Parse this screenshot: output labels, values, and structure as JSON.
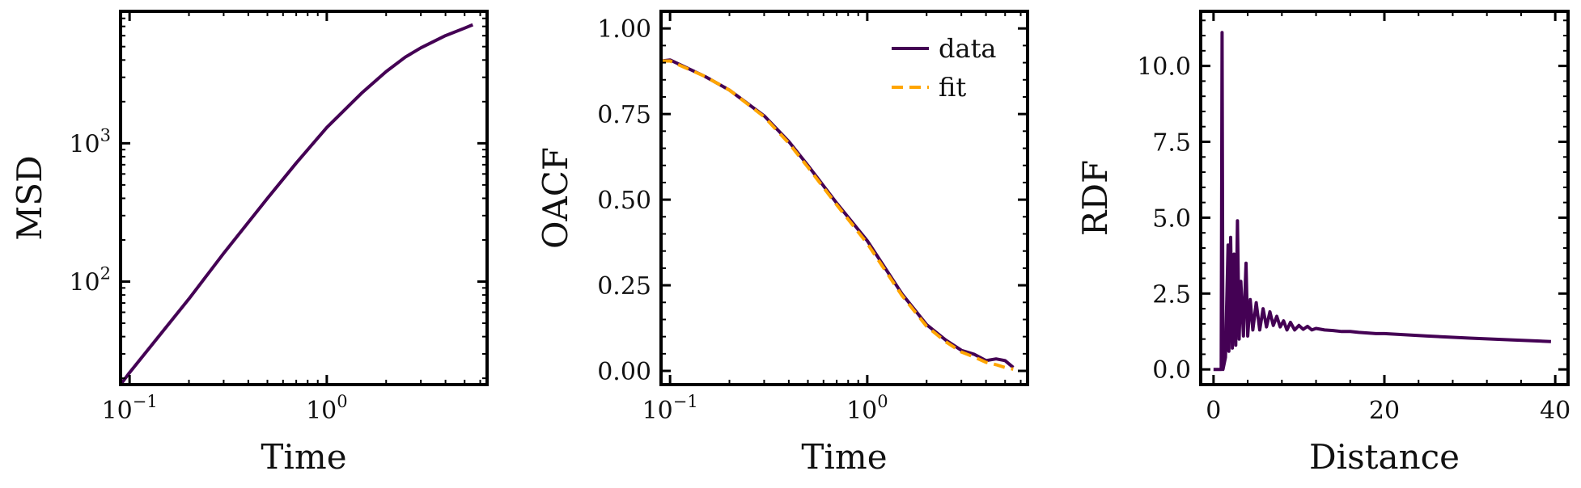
{
  "chart_data": [
    {
      "type": "line",
      "xlabel": "Time",
      "ylabel": "MSD",
      "xscale": "log",
      "yscale": "log",
      "xlim": [
        0.09,
        6.5
      ],
      "ylim": [
        18,
        9000
      ],
      "xticks": [
        {
          "value": 0.1,
          "base": "10",
          "exp": "−1"
        },
        {
          "value": 1,
          "base": "10",
          "exp": "0"
        }
      ],
      "yticks": [
        {
          "value": 100,
          "base": "10",
          "exp": "2"
        },
        {
          "value": 1000,
          "base": "10",
          "exp": "3"
        }
      ],
      "series": [
        {
          "color": "#440154",
          "dash": "solid",
          "x": [
            0.09,
            0.1,
            0.2,
            0.3,
            0.5,
            0.7,
            1.0,
            1.5,
            2.0,
            2.5,
            3.0,
            4.0,
            5.0,
            5.5
          ],
          "y": [
            18,
            22,
            75,
            160,
            400,
            720,
            1300,
            2300,
            3300,
            4200,
            4900,
            6000,
            6800,
            7200
          ]
        }
      ]
    },
    {
      "type": "line",
      "xlabel": "Time",
      "ylabel": "OACF",
      "xscale": "log",
      "yscale": "linear",
      "xlim": [
        0.09,
        6.5
      ],
      "ylim": [
        -0.04,
        1.05
      ],
      "xticks": [
        {
          "value": 0.1,
          "base": "10",
          "exp": "−1"
        },
        {
          "value": 1,
          "base": "10",
          "exp": "0"
        }
      ],
      "yticks": [
        {
          "value": 0.0,
          "label": "0.00"
        },
        {
          "value": 0.25,
          "label": "0.25"
        },
        {
          "value": 0.5,
          "label": "0.50"
        },
        {
          "value": 0.75,
          "label": "0.75"
        },
        {
          "value": 1.0,
          "label": "1.00"
        }
      ],
      "legend": "top-right",
      "series": [
        {
          "name": "data",
          "color": "#440154",
          "dash": "solid",
          "x": [
            0.09,
            0.1,
            0.15,
            0.2,
            0.3,
            0.4,
            0.5,
            0.7,
            1.0,
            1.5,
            2.0,
            2.5,
            3.0,
            3.5,
            4.0,
            4.5,
            5.0,
            5.5
          ],
          "y": [
            0.905,
            0.908,
            0.86,
            0.82,
            0.745,
            0.67,
            0.6,
            0.49,
            0.38,
            0.225,
            0.135,
            0.09,
            0.06,
            0.048,
            0.03,
            0.035,
            0.03,
            0.01
          ]
        },
        {
          "name": "fit",
          "color": "#FFA500",
          "dash": "dashed",
          "x": [
            0.09,
            0.1,
            0.15,
            0.2,
            0.3,
            0.4,
            0.5,
            0.7,
            1.0,
            1.5,
            2.0,
            2.5,
            3.0,
            3.5,
            4.0,
            4.5,
            5.0,
            5.5
          ],
          "y": [
            0.905,
            0.905,
            0.86,
            0.82,
            0.742,
            0.665,
            0.595,
            0.485,
            0.372,
            0.22,
            0.13,
            0.085,
            0.055,
            0.04,
            0.025,
            0.018,
            0.01,
            0.005
          ]
        }
      ]
    },
    {
      "type": "line",
      "xlabel": "Distance",
      "ylabel": "RDF",
      "xscale": "linear",
      "yscale": "linear",
      "xlim": [
        -1.5,
        41.5
      ],
      "ylim": [
        -0.5,
        11.8
      ],
      "xticks": [
        {
          "value": 0,
          "label": "0"
        },
        {
          "value": 20,
          "label": "20"
        },
        {
          "value": 40,
          "label": "40"
        }
      ],
      "yticks": [
        {
          "value": 0,
          "label": "0.0"
        },
        {
          "value": 2.5,
          "label": "2.5"
        },
        {
          "value": 5,
          "label": "5.0"
        },
        {
          "value": 7.5,
          "label": "7.5"
        },
        {
          "value": 10,
          "label": "10.0"
        }
      ],
      "series": [
        {
          "color": "#440154",
          "dash": "solid",
          "x": [
            0.0,
            0.9,
            1.0,
            1.1,
            1.4,
            1.7,
            1.8,
            2.0,
            2.2,
            2.4,
            2.6,
            2.8,
            3.0,
            3.2,
            3.5,
            3.8,
            4.0,
            4.3,
            4.6,
            5.0,
            5.4,
            5.8,
            6.2,
            6.6,
            7.0,
            7.4,
            7.8,
            8.2,
            8.6,
            9.0,
            9.5,
            10.0,
            10.5,
            11.0,
            11.5,
            12.0,
            13.0,
            14.0,
            15.0,
            16.0,
            17.0,
            18.0,
            19.0,
            20.0,
            25.0,
            30.0,
            35.0,
            39.5
          ],
          "y": [
            0.0,
            0.0,
            11.1,
            0.0,
            0.4,
            4.1,
            0.6,
            4.35,
            0.7,
            3.8,
            0.8,
            4.9,
            1.0,
            2.9,
            1.1,
            3.5,
            1.1,
            2.3,
            1.3,
            2.2,
            1.3,
            2.0,
            1.4,
            1.9,
            1.45,
            1.75,
            1.4,
            1.6,
            1.3,
            1.55,
            1.3,
            1.45,
            1.32,
            1.42,
            1.3,
            1.35,
            1.3,
            1.28,
            1.25,
            1.25,
            1.22,
            1.2,
            1.18,
            1.18,
            1.1,
            1.03,
            0.97,
            0.92
          ]
        }
      ]
    }
  ]
}
